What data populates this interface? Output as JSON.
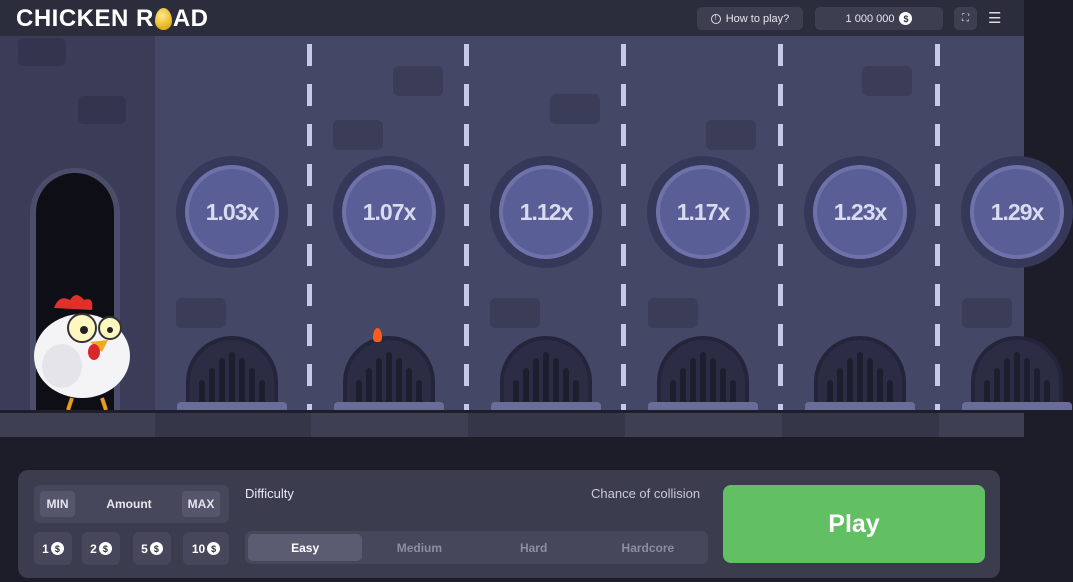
{
  "header": {
    "logo_text_left": "CHICKEN R",
    "logo_text_right": "AD",
    "how_to_play": "How to play?",
    "balance": "1 000 000",
    "currency_symbol": "$"
  },
  "game": {
    "multipliers": [
      "1.03x",
      "1.07x",
      "1.12x",
      "1.17x",
      "1.23x",
      "1.29x"
    ]
  },
  "controls": {
    "min_label": "MIN",
    "amount_label": "Amount",
    "max_label": "MAX",
    "quick_amounts": [
      "1",
      "2",
      "5",
      "10"
    ],
    "difficulty_label": "Difficulty",
    "collision_label": "Chance of collision",
    "difficulties": [
      "Easy",
      "Medium",
      "Hard",
      "Hardcore"
    ],
    "selected_difficulty": "Easy",
    "play_label": "Play"
  },
  "colors": {
    "play": "#62bf64",
    "background": "#454767"
  }
}
